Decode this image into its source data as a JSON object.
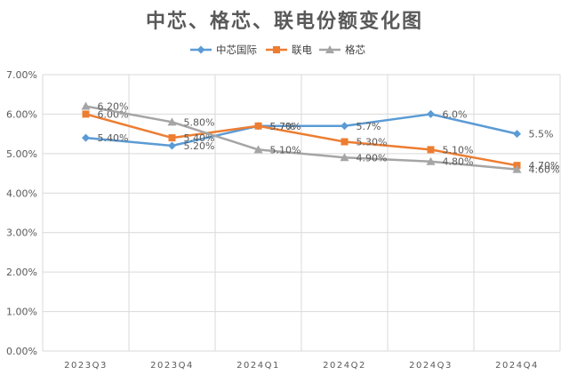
{
  "chart_data": {
    "type": "line",
    "title": "中芯、格芯、联电份额变化图",
    "categories": [
      "2023Q3",
      "2023Q4",
      "2024Q1",
      "2024Q2",
      "2024Q3",
      "2024Q4"
    ],
    "ylim": [
      0,
      7
    ],
    "yticks": [
      "0.00%",
      "1.00%",
      "2.00%",
      "3.00%",
      "4.00%",
      "5.00%",
      "6.00%",
      "7.00%"
    ],
    "grid": true,
    "legend_position": "top",
    "series": [
      {
        "name": "中芯国际",
        "color": "#5b9bd5",
        "marker": "diamond",
        "values": [
          5.4,
          5.2,
          5.7,
          5.7,
          6.0,
          5.5
        ],
        "labels": [
          "5.40%",
          "5.20%",
          "5.7%",
          "5.7%",
          "6.0%",
          "5.5%"
        ]
      },
      {
        "name": "联电",
        "color": "#ed7d31",
        "marker": "square",
        "values": [
          6.0,
          5.4,
          5.7,
          5.3,
          5.1,
          4.7
        ],
        "labels": [
          "6.00%",
          "5.40%",
          "5.70%",
          "5.30%",
          "5.10%",
          "4.70%"
        ]
      },
      {
        "name": "格芯",
        "color": "#a5a5a5",
        "marker": "triangle",
        "values": [
          6.2,
          5.8,
          5.1,
          4.9,
          4.8,
          4.6
        ],
        "labels": [
          "6.20%",
          "5.80%",
          "5.10%",
          "4.90%",
          "4.80%",
          "4.60%"
        ]
      }
    ]
  }
}
